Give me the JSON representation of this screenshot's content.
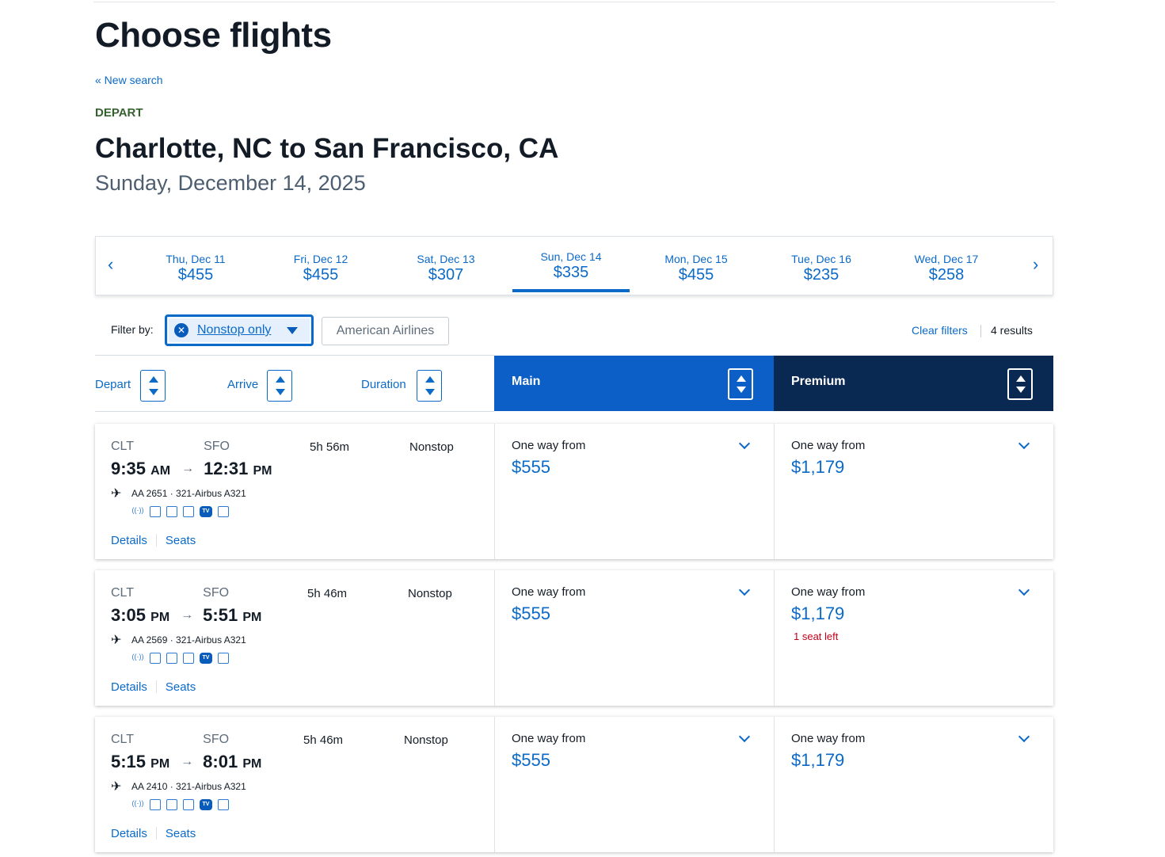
{
  "title": "Choose flights",
  "new_search": "« New search",
  "section": "DEPART",
  "route": "Charlotte, NC to San Francisco, CA",
  "date": "Sunday, December 14, 2025",
  "date_strip": {
    "prev": "‹",
    "next": "›",
    "days": [
      {
        "date": "Thu, Dec 11",
        "price": "$455"
      },
      {
        "date": "Fri, Dec 12",
        "price": "$455"
      },
      {
        "date": "Sat, Dec 13",
        "price": "$307"
      },
      {
        "date": "Sun, Dec 14",
        "price": "$335",
        "selected": true
      },
      {
        "date": "Mon, Dec 15",
        "price": "$455"
      },
      {
        "date": "Tue, Dec 16",
        "price": "$235"
      },
      {
        "date": "Wed, Dec 17",
        "price": "$258"
      }
    ]
  },
  "filters": {
    "label": "Filter by:",
    "active": "Nonstop only",
    "airline": "American Airlines",
    "clear": "Clear filters",
    "results": "4 results"
  },
  "sort": {
    "depart": "Depart",
    "arrive": "Arrive",
    "duration": "Duration"
  },
  "cabins": {
    "main": "Main",
    "premium": "Premium",
    "main_color": "#0b5fc7",
    "premium_color": "#0a2952"
  },
  "details_label": "Details",
  "seats_label": "Seats",
  "one_way": "One way from",
  "flights": [
    {
      "from": "CLT",
      "to": "SFO",
      "dep": "9:35",
      "dep_ampm": "AM",
      "arr": "12:31",
      "arr_ampm": "PM",
      "duration": "5h 56m",
      "stops": "Nonstop",
      "flight": "AA 2651 · 321-Airbus A321",
      "main": "$555",
      "premium": "$1,179",
      "premium_note": ""
    },
    {
      "from": "CLT",
      "to": "SFO",
      "dep": "3:05",
      "dep_ampm": "PM",
      "arr": "5:51",
      "arr_ampm": "PM",
      "duration": "5h 46m",
      "stops": "Nonstop",
      "flight": "AA 2569 · 321-Airbus A321",
      "main": "$555",
      "premium": "$1,179",
      "premium_note": "1 seat left"
    },
    {
      "from": "CLT",
      "to": "SFO",
      "dep": "5:15",
      "dep_ampm": "PM",
      "arr": "8:01",
      "arr_ampm": "PM",
      "duration": "5h 46m",
      "stops": "Nonstop",
      "flight": "AA 2410 · 321-Airbus A321",
      "main": "$555",
      "premium": "$1,179",
      "premium_note": ""
    }
  ]
}
